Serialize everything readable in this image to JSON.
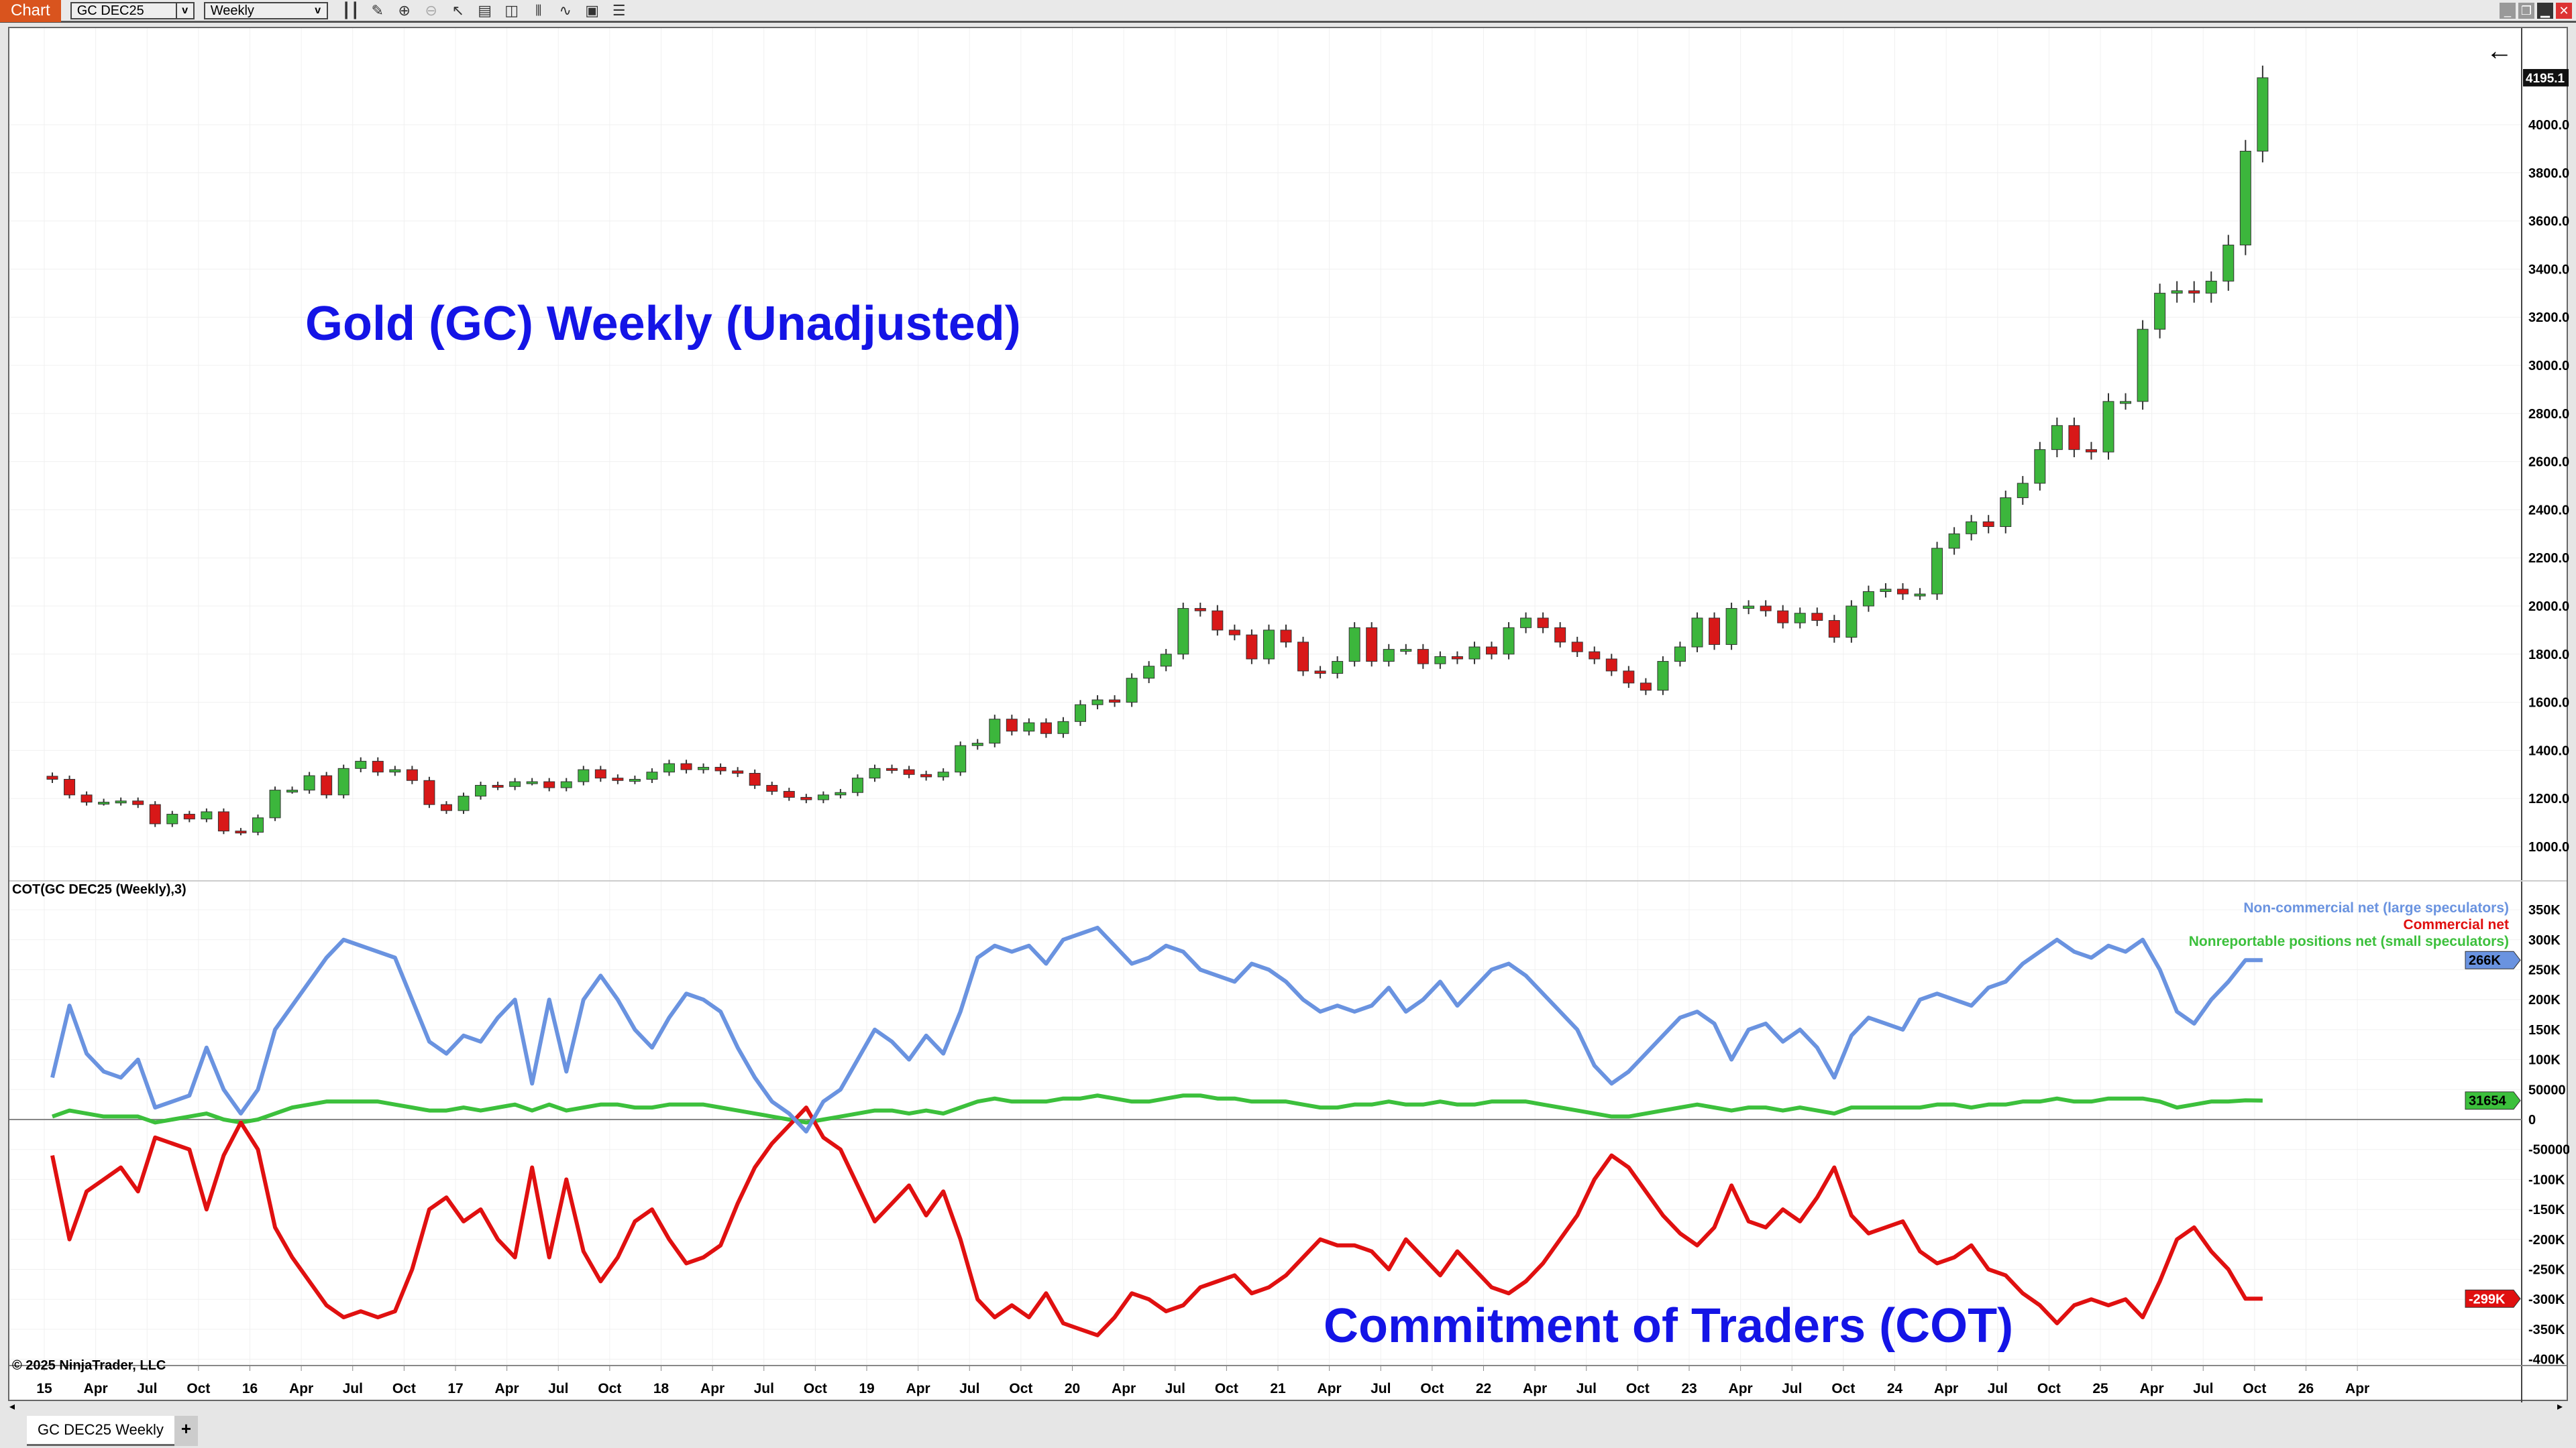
{
  "toolbar": {
    "chart_label": "Chart",
    "instrument": "GC DEC25",
    "interval": "Weekly",
    "icons": [
      "bar-type-icon",
      "draw-icon",
      "zoom-in-icon",
      "zoom-out-icon",
      "pointer-icon",
      "data-box-icon",
      "properties-icon",
      "indicators-icon",
      "strategies-icon",
      "templates-icon",
      "chart-trader-icon"
    ]
  },
  "window": {
    "controls": [
      "minimize",
      "restore",
      "maximize",
      "close"
    ]
  },
  "titles": {
    "price": "Gold (GC) Weekly (Unadjusted)",
    "cot": "Commitment of Traders (COT)"
  },
  "cot_label": "COT(GC DEC25 (Weekly),3)",
  "copyright": "© 2025 NinjaTrader, LLC",
  "tab": {
    "label": "GC DEC25 Weekly",
    "add": "+"
  },
  "chart_data": [
    {
      "type": "candlestick",
      "title": "Gold (GC) Weekly (Unadjusted)",
      "start": "2015-01",
      "step": "month",
      "closes": [
        1280,
        1215,
        1185,
        1185,
        1190,
        1175,
        1095,
        1135,
        1115,
        1145,
        1065,
        1060,
        1120,
        1235,
        1235,
        1295,
        1215,
        1325,
        1355,
        1310,
        1320,
        1275,
        1175,
        1150,
        1210,
        1255,
        1250,
        1270,
        1270,
        1245,
        1270,
        1320,
        1285,
        1275,
        1280,
        1310,
        1345,
        1320,
        1330,
        1315,
        1305,
        1255,
        1230,
        1205,
        1195,
        1215,
        1225,
        1285,
        1325,
        1320,
        1300,
        1290,
        1310,
        1420,
        1430,
        1530,
        1480,
        1515,
        1470,
        1520,
        1590,
        1610,
        1600,
        1700,
        1750,
        1800,
        1990,
        1980,
        1900,
        1880,
        1780,
        1900,
        1850,
        1730,
        1720,
        1770,
        1910,
        1770,
        1820,
        1820,
        1760,
        1790,
        1780,
        1830,
        1800,
        1910,
        1950,
        1910,
        1850,
        1810,
        1780,
        1730,
        1680,
        1650,
        1770,
        1830,
        1950,
        1840,
        1990,
        2000,
        1980,
        1930,
        1970,
        1940,
        1870,
        2000,
        2060,
        2070,
        2050,
        2050,
        2240,
        2300,
        2350,
        2330,
        2450,
        2510,
        2650,
        2750,
        2650,
        2640,
        2850,
        2850,
        3150,
        3300,
        3310,
        3300,
        3350,
        3500,
        3890,
        4195.1
      ],
      "last_price": "4195.1",
      "ylim": [
        1000,
        4000
      ],
      "yticks": [
        "4000.0",
        "3800.0",
        "3600.0",
        "3400.0",
        "3200.0",
        "3000.0",
        "2800.0",
        "2600.0",
        "2400.0",
        "2200.0",
        "2000.0",
        "1800.0",
        "1600.0",
        "1400.0",
        "1200.0",
        "1000.0"
      ],
      "colors": {
        "up": "#3cb63c",
        "down": "#d81818"
      }
    },
    {
      "type": "line",
      "title": "COT(GC DEC25 (Weekly),3)",
      "start": "2015-01",
      "step": "month",
      "units": "K",
      "series": [
        {
          "name": "Non-commercial net (large speculators)",
          "color": "#6a93e0",
          "last": "266K",
          "values": [
            70,
            190,
            110,
            80,
            70,
            100,
            20,
            30,
            40,
            120,
            50,
            10,
            50,
            150,
            190,
            230,
            270,
            300,
            290,
            280,
            270,
            200,
            130,
            110,
            140,
            130,
            170,
            200,
            60,
            200,
            80,
            200,
            240,
            200,
            150,
            120,
            170,
            210,
            200,
            180,
            120,
            70,
            30,
            10,
            -20,
            30,
            50,
            100,
            150,
            130,
            100,
            140,
            110,
            180,
            270,
            290,
            280,
            290,
            260,
            300,
            310,
            320,
            290,
            260,
            270,
            290,
            280,
            250,
            240,
            230,
            260,
            250,
            230,
            200,
            180,
            190,
            180,
            190,
            220,
            180,
            200,
            230,
            190,
            220,
            250,
            260,
            240,
            210,
            180,
            150,
            90,
            60,
            80,
            110,
            140,
            170,
            180,
            160,
            100,
            150,
            160,
            130,
            150,
            120,
            70,
            140,
            170,
            160,
            150,
            200,
            210,
            200,
            190,
            220,
            230,
            260,
            280,
            300,
            280,
            270,
            290,
            280,
            300,
            250,
            180,
            160,
            200,
            230,
            266,
            266
          ]
        },
        {
          "name": "Commercial net",
          "color": "#e01010",
          "last": "-299K",
          "values": [
            -60,
            -200,
            -120,
            -100,
            -80,
            -120,
            -30,
            -40,
            -50,
            -150,
            -60,
            -5,
            -50,
            -180,
            -230,
            -270,
            -310,
            -330,
            -320,
            -330,
            -320,
            -250,
            -150,
            -130,
            -170,
            -150,
            -200,
            -230,
            -80,
            -230,
            -100,
            -220,
            -270,
            -230,
            -170,
            -150,
            -200,
            -240,
            -230,
            -210,
            -140,
            -80,
            -40,
            -10,
            20,
            -30,
            -50,
            -110,
            -170,
            -140,
            -110,
            -160,
            -120,
            -200,
            -300,
            -330,
            -310,
            -330,
            -290,
            -340,
            -350,
            -360,
            -330,
            -290,
            -300,
            -320,
            -310,
            -280,
            -270,
            -260,
            -290,
            -280,
            -260,
            -230,
            -200,
            -210,
            -210,
            -220,
            -250,
            -200,
            -230,
            -260,
            -220,
            -250,
            -280,
            -290,
            -270,
            -240,
            -200,
            -160,
            -100,
            -60,
            -80,
            -120,
            -160,
            -190,
            -210,
            -180,
            -110,
            -170,
            -180,
            -150,
            -170,
            -130,
            -80,
            -160,
            -190,
            -180,
            -170,
            -220,
            -240,
            -230,
            -210,
            -250,
            -260,
            -290,
            -310,
            -340,
            -310,
            -300,
            -310,
            -300,
            -330,
            -270,
            -200,
            -180,
            -220,
            -250,
            -299,
            -299
          ]
        },
        {
          "name": "Nonreportable positions net (small speculators)",
          "color": "#3cc03c",
          "last": "31654",
          "values": [
            5,
            15,
            10,
            5,
            5,
            5,
            -5,
            0,
            5,
            10,
            0,
            -5,
            0,
            10,
            20,
            25,
            30,
            30,
            30,
            30,
            25,
            20,
            15,
            15,
            20,
            15,
            20,
            25,
            15,
            25,
            15,
            20,
            25,
            25,
            20,
            20,
            25,
            25,
            25,
            20,
            15,
            10,
            5,
            0,
            -5,
            0,
            5,
            10,
            15,
            15,
            10,
            15,
            10,
            20,
            30,
            35,
            30,
            30,
            30,
            35,
            35,
            40,
            35,
            30,
            30,
            35,
            40,
            40,
            35,
            35,
            30,
            30,
            30,
            25,
            20,
            20,
            25,
            25,
            30,
            25,
            25,
            30,
            25,
            25,
            30,
            30,
            30,
            25,
            20,
            15,
            10,
            5,
            5,
            10,
            15,
            20,
            25,
            20,
            15,
            20,
            20,
            15,
            20,
            15,
            10,
            20,
            20,
            20,
            20,
            20,
            25,
            25,
            20,
            25,
            25,
            30,
            30,
            35,
            30,
            30,
            35,
            35,
            35,
            30,
            20,
            25,
            30,
            30,
            32,
            31.654
          ]
        }
      ],
      "ylim": [
        -400,
        350
      ],
      "yticks": [
        "350K",
        "300K",
        "250K",
        "200K",
        "150K",
        "100K",
        "50000",
        "0",
        "-50000",
        "-100K",
        "-150K",
        "-200K",
        "-250K",
        "-300K",
        "-350K",
        "-400K"
      ]
    }
  ],
  "xaxis": {
    "ticks": [
      "15",
      "Apr",
      "Jul",
      "Oct",
      "16",
      "Apr",
      "Jul",
      "Oct",
      "17",
      "Apr",
      "Jul",
      "Oct",
      "18",
      "Apr",
      "Jul",
      "Oct",
      "19",
      "Apr",
      "Jul",
      "Oct",
      "20",
      "Apr",
      "Jul",
      "Oct",
      "21",
      "Apr",
      "Jul",
      "Oct",
      "22",
      "Apr",
      "Jul",
      "Oct",
      "23",
      "Apr",
      "Jul",
      "Oct",
      "24",
      "Apr",
      "Jul",
      "Oct",
      "25",
      "Apr",
      "Jul",
      "Oct",
      "26",
      "Apr"
    ]
  }
}
